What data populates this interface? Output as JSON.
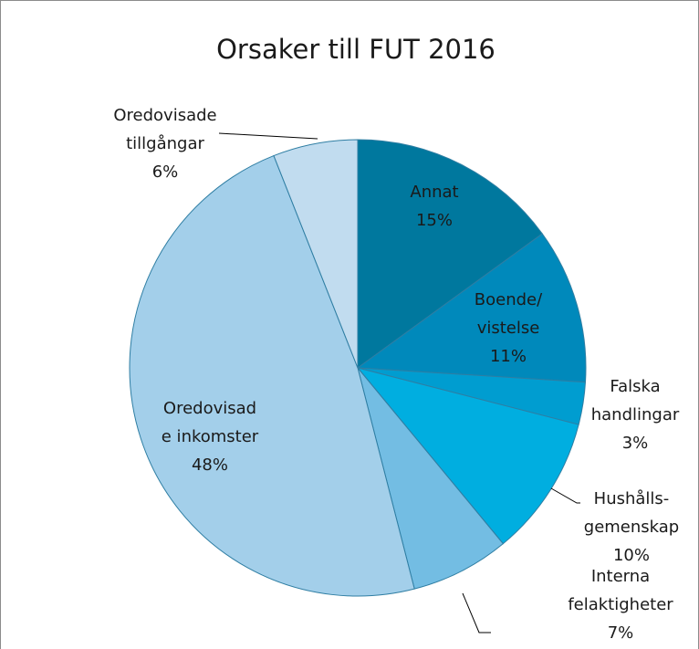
{
  "chart_data": {
    "type": "pie",
    "title": "Orsaker till FUT 2016",
    "categories": [
      "Annat",
      "Boende/\nvistelse",
      "Falska\nhandlingar",
      "Hushålls-\ngemenskap",
      "Interna\nfelaktigheter",
      "Oredovisad\ne inkomster",
      "Oredovisade\ntillgångar"
    ],
    "values": [
      15,
      11,
      3,
      10,
      7,
      48,
      6
    ],
    "value_labels": [
      "15%",
      "11%",
      "3%",
      "10%",
      "7%",
      "48%",
      "6%"
    ],
    "colors": [
      "#00789e",
      "#0089bb",
      "#009dd0",
      "#00aee0",
      "#73bde3",
      "#a3cfea",
      "#c1dcef"
    ]
  }
}
